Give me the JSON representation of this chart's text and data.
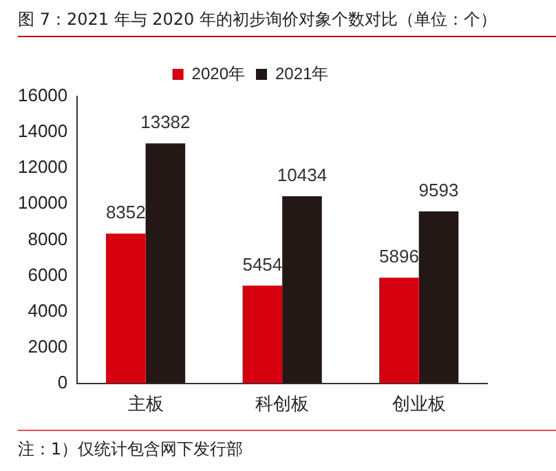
{
  "chart_data": {
    "type": "bar",
    "title": "图 7：2021 年与 2020 年的初步询价对象个数对比（单位：个）",
    "categories": [
      "主板",
      "科创板",
      "创业板"
    ],
    "series": [
      {
        "name": "2020年",
        "color": "#d7000f",
        "values": [
          8352,
          5454,
          5896
        ]
      },
      {
        "name": "2021年",
        "color": "#231815",
        "values": [
          13382,
          10434,
          9593
        ]
      }
    ],
    "ylim": [
      0,
      16000
    ],
    "yticks": [
      0,
      2000,
      4000,
      6000,
      8000,
      10000,
      12000,
      14000,
      16000
    ],
    "grid": false,
    "legend": "top",
    "data_labels": true,
    "annotations": [
      "注：1）仅统计包含网下发行部"
    ]
  }
}
